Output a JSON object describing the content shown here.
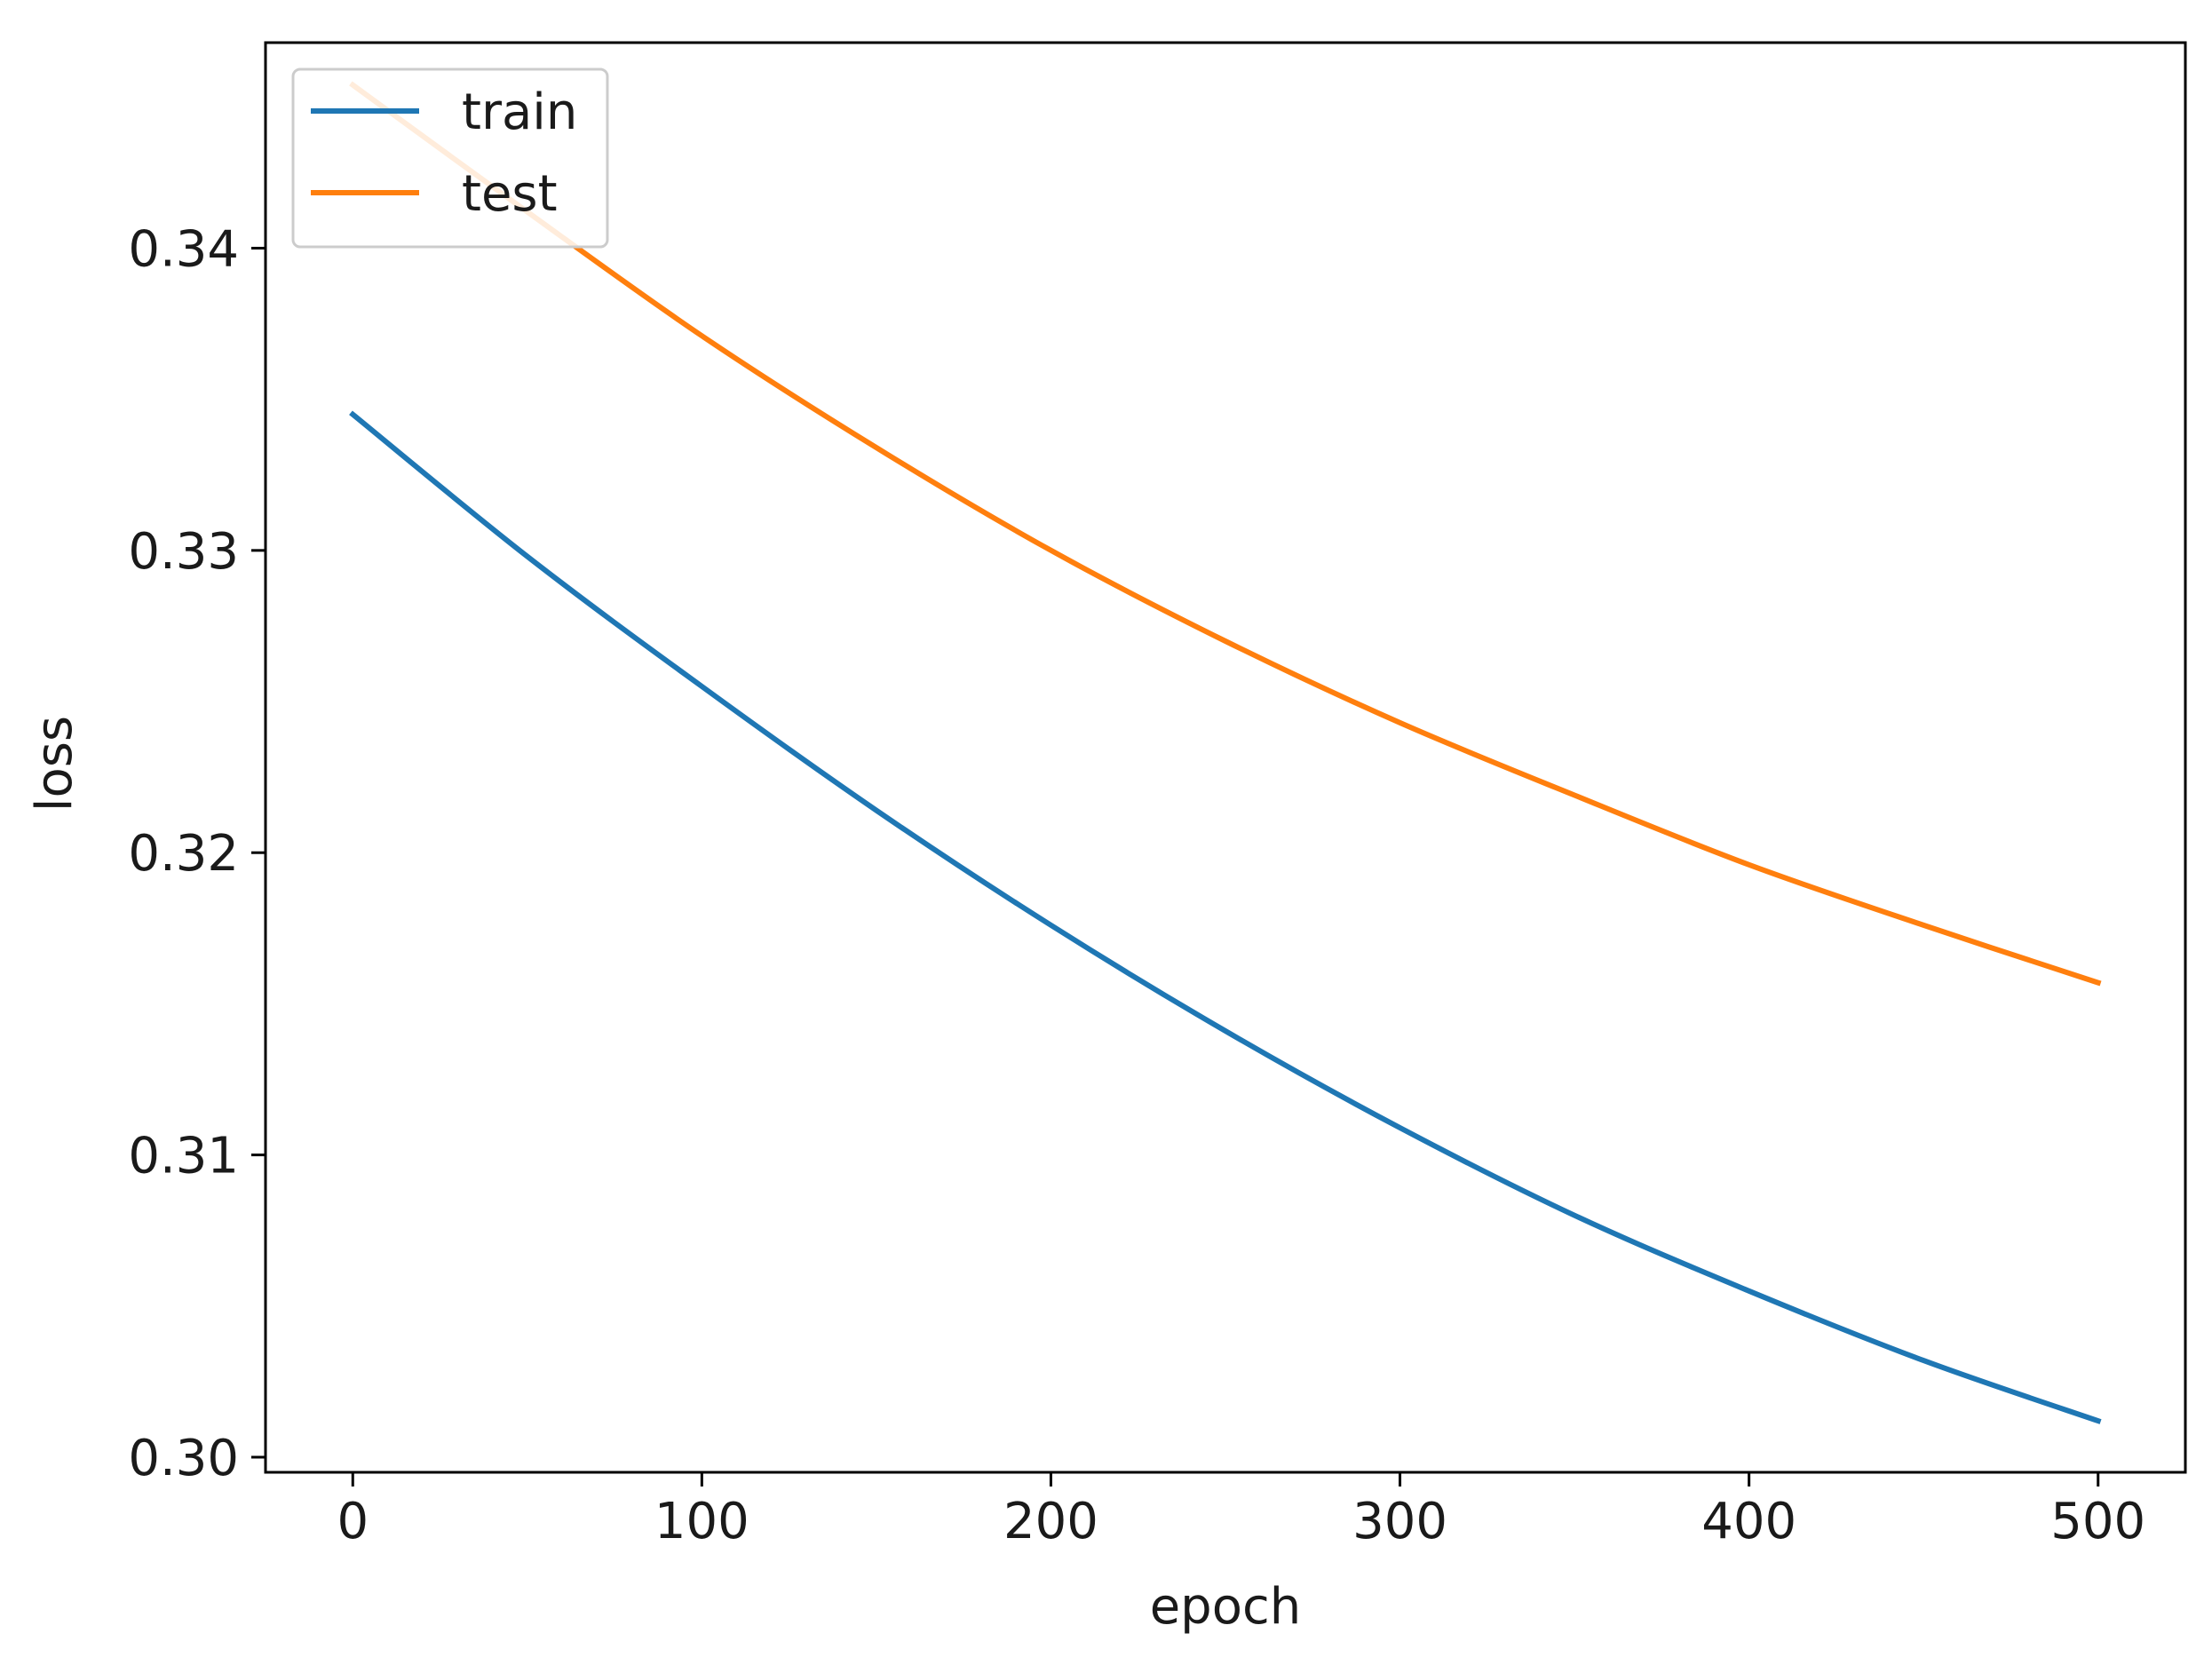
{
  "chart_data": {
    "type": "line",
    "title": "",
    "xlabel": "epoch",
    "ylabel": "loss",
    "xlim": [
      -25,
      525
    ],
    "ylim": [
      0.2995,
      0.3468
    ],
    "xticks": [
      0,
      100,
      200,
      300,
      400,
      500
    ],
    "xtick_labels": [
      "0",
      "100",
      "200",
      "300",
      "400",
      "500"
    ],
    "yticks": [
      0.3,
      0.31,
      0.32,
      0.33,
      0.34
    ],
    "ytick_labels": [
      "0.30",
      "0.31",
      "0.32",
      "0.33",
      "0.34"
    ],
    "grid": false,
    "legend_position": "upper-left",
    "series": [
      {
        "name": "train",
        "color": "#1f77b4",
        "x": [
          0,
          50,
          100,
          150,
          200,
          250,
          300,
          350,
          400,
          450,
          500
        ],
        "y": [
          0.3345,
          0.3298,
          0.3255,
          0.3214,
          0.3176,
          0.3141,
          0.3109,
          0.308,
          0.3055,
          0.3032,
          0.3012
        ]
      },
      {
        "name": "test",
        "color": "#ff7f0e",
        "x": [
          0,
          50,
          100,
          150,
          200,
          250,
          300,
          350,
          400,
          450,
          500
        ],
        "y": [
          0.3454,
          0.3412,
          0.3371,
          0.3334,
          0.33,
          0.327,
          0.3243,
          0.3219,
          0.3196,
          0.3176,
          0.3157
        ]
      }
    ]
  }
}
